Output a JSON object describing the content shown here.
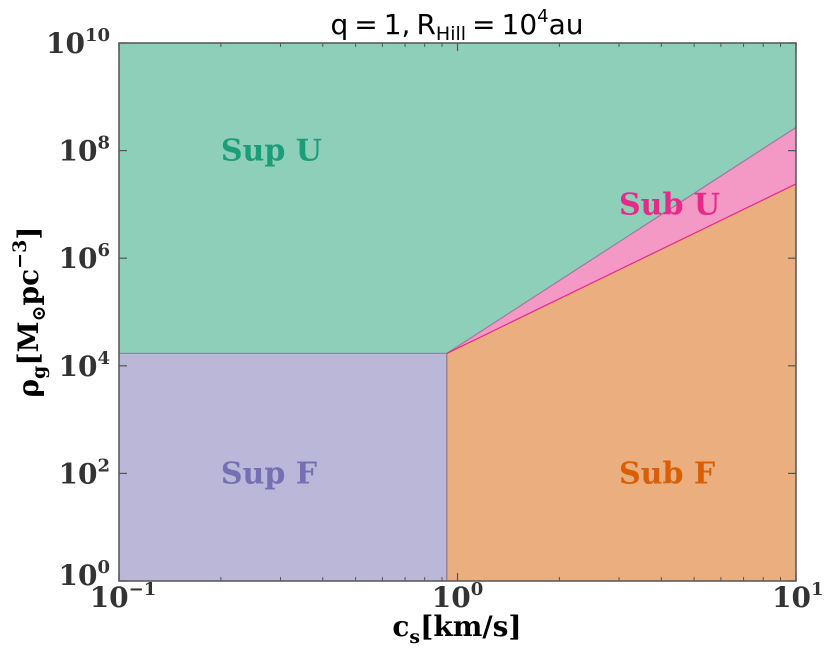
{
  "chart_data": {
    "type": "area",
    "title": "q = 1, R_Hill = 10^4 au",
    "xlabel": "c_s [km/s]",
    "ylabel": "ρ_g [M_⊙ pc^-3]",
    "xscale": "log",
    "yscale": "log",
    "xlim": [
      0.1,
      10
    ],
    "ylim": [
      1,
      10000000000
    ],
    "xticks": [
      {
        "value": 0.1,
        "base": "10",
        "exp": "−1"
      },
      {
        "value": 1,
        "base": "10",
        "exp": "0"
      },
      {
        "value": 10,
        "base": "10",
        "exp": "1"
      }
    ],
    "yticks": [
      {
        "value": 1,
        "base": "10",
        "exp": "0"
      },
      {
        "value": 100,
        "base": "10",
        "exp": "2"
      },
      {
        "value": 10000,
        "base": "10",
        "exp": "4"
      },
      {
        "value": 1000000,
        "base": "10",
        "exp": "6"
      },
      {
        "value": 100000000,
        "base": "10",
        "exp": "8"
      },
      {
        "value": 10000000000,
        "base": "10",
        "exp": "10"
      }
    ],
    "boundaries": {
      "horizontal": {
        "y": 17000,
        "x_range": [
          0.1,
          0.93
        ]
      },
      "vertical": {
        "x": 0.93,
        "y_range": [
          1,
          17000
        ]
      },
      "upper_diagonal": {
        "x": [
          0.93,
          10
        ],
        "y": [
          17000,
          270000000
        ]
      },
      "lower_diagonal": {
        "x": [
          0.93,
          10
        ],
        "y": [
          17000,
          24000000
        ]
      }
    },
    "regions": [
      {
        "name": "Sup U",
        "label_at": [
          0.2,
          100000000
        ],
        "fill": "#8ecfb9",
        "text_color": "#1b9e77"
      },
      {
        "name": "Sub U",
        "label_at": [
          3.0,
          10000000
        ],
        "fill": "#f498c5",
        "text_color": "#e7298a"
      },
      {
        "name": "Sup F",
        "label_at": [
          0.2,
          100
        ],
        "fill": "#bab7d9",
        "text_color": "#7570b3"
      },
      {
        "name": "Sub F",
        "label_at": [
          3.0,
          100
        ],
        "fill": "#ebaf7f",
        "text_color": "#d95f02"
      }
    ],
    "grid": false,
    "legend": "none"
  }
}
